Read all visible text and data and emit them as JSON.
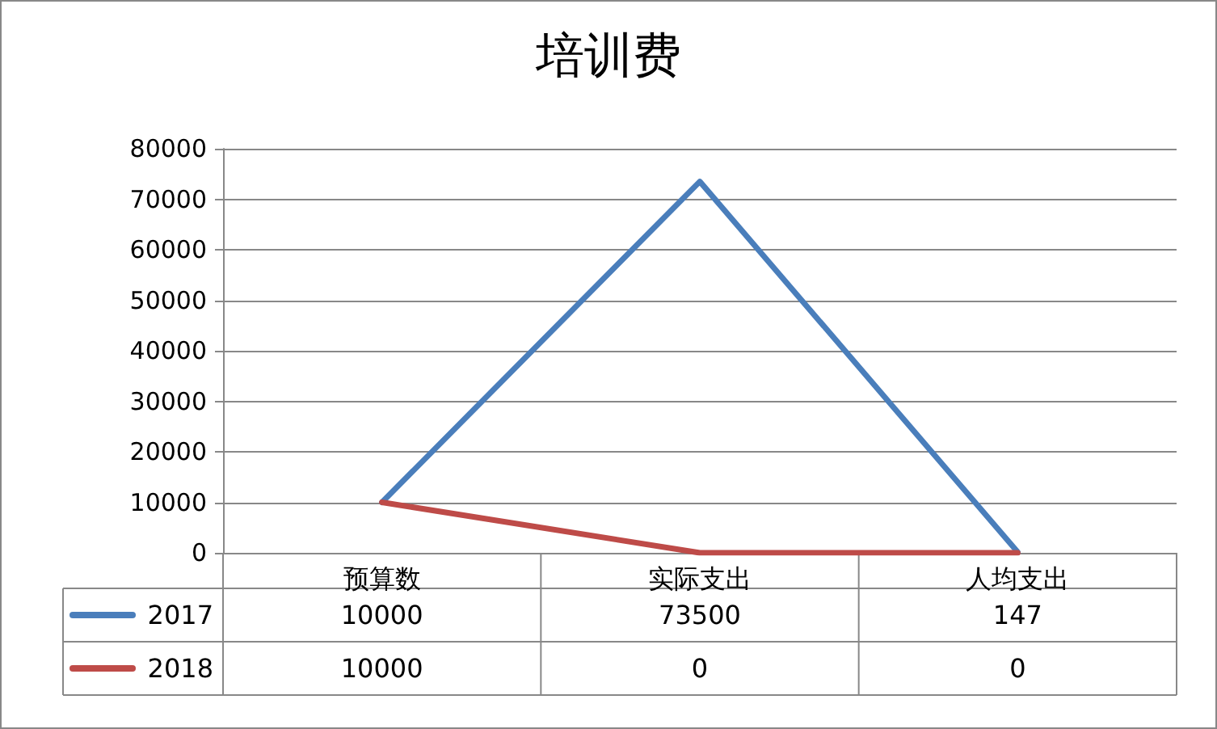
{
  "chart_data": {
    "type": "line",
    "title": "培训费",
    "categories": [
      "预算数",
      "实际支出",
      "人均支出"
    ],
    "series": [
      {
        "name": "2017",
        "color": "#4a7ebb",
        "values": [
          10000,
          73500,
          147
        ]
      },
      {
        "name": "2018",
        "color": "#be4b48",
        "values": [
          10000,
          0,
          0
        ]
      }
    ],
    "ylim": [
      0,
      80000
    ],
    "yticks": [
      0,
      10000,
      20000,
      30000,
      40000,
      50000,
      60000,
      70000,
      80000
    ],
    "grid": "y",
    "legend": "bottom",
    "marker": "none",
    "line_style": "solid",
    "data_labels": true
  }
}
